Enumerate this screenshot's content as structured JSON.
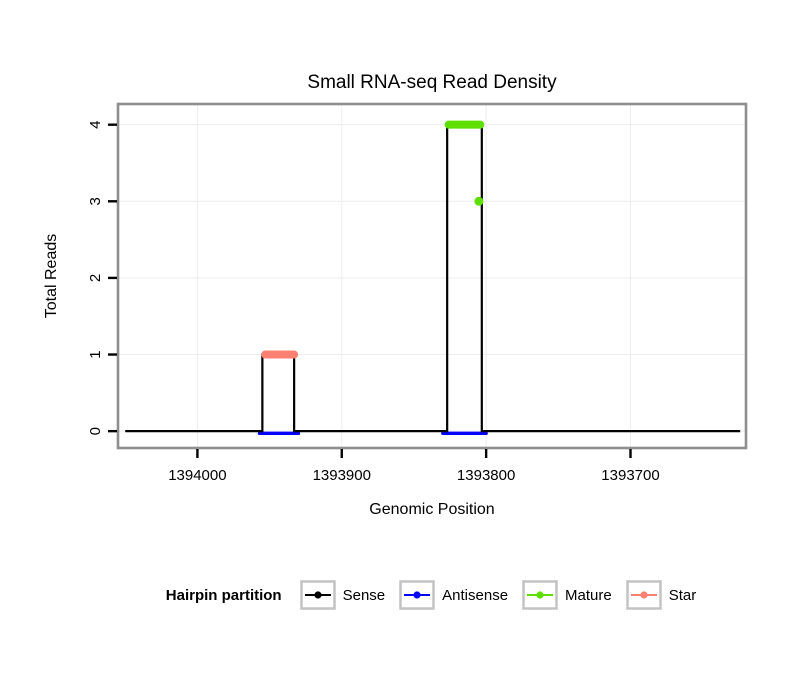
{
  "legend": {
    "title": "Hairpin partition",
    "items": [
      {
        "label": "Sense",
        "color": "#000000"
      },
      {
        "label": "Antisense",
        "color": "#0000ff"
      },
      {
        "label": "Mature",
        "color": "#5fdf00"
      },
      {
        "label": "Star",
        "color": "#fa8072"
      }
    ]
  },
  "chart_data": {
    "type": "line",
    "title": "Small RNA-seq Read Density",
    "xlabel": "Genomic Position",
    "ylabel": "Total Reads",
    "x_ticks": [
      1394000,
      1393900,
      1393800,
      1393700
    ],
    "y_ticks": [
      0,
      1,
      2,
      3,
      4
    ],
    "xlim": [
      1394055,
      1393620
    ],
    "ylim": [
      -0.22,
      4.27
    ],
    "x_axis_reversed": true,
    "grid": true,
    "legend_position": "bottom",
    "series": [
      {
        "name": "Sense",
        "color": "#000000",
        "kind": "step-outline",
        "points": [
          [
            1394050,
            0
          ],
          [
            1393955,
            0
          ],
          [
            1393955,
            1
          ],
          [
            1393933,
            1
          ],
          [
            1393933,
            0
          ],
          [
            1393827,
            0
          ],
          [
            1393827,
            4
          ],
          [
            1393803,
            4
          ],
          [
            1393803,
            0
          ],
          [
            1393624,
            0
          ]
        ]
      },
      {
        "name": "Antisense",
        "color": "#0000ff",
        "kind": "baseline-segments",
        "y": 0,
        "segments": [
          [
            1393957,
            1393930
          ],
          [
            1393830,
            1393800
          ]
        ]
      },
      {
        "name": "Mature",
        "color": "#5fdf00",
        "kind": "segment-and-point",
        "segment": {
          "y": 4,
          "x1": 1393826,
          "x2": 1393804
        },
        "point": {
          "x": 1393805,
          "y": 3
        }
      },
      {
        "name": "Star",
        "color": "#fa8072",
        "kind": "segment",
        "segment": {
          "y": 1,
          "x1": 1393953,
          "x2": 1393933
        }
      }
    ]
  }
}
